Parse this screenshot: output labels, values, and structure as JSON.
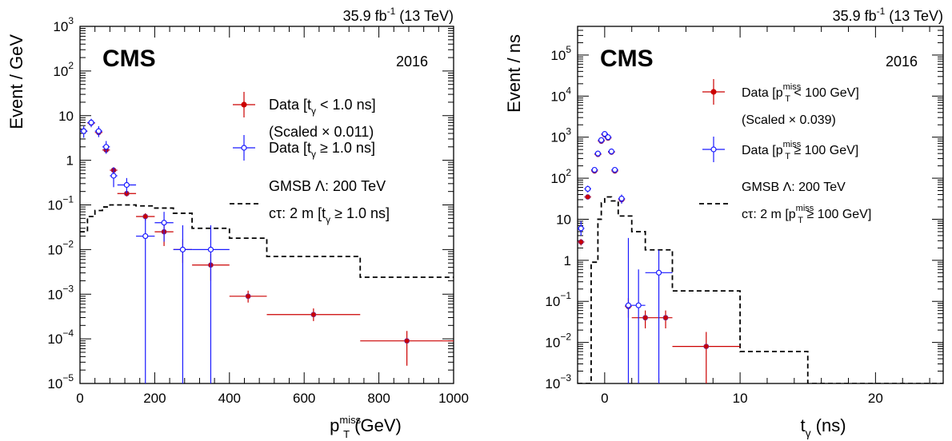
{
  "colors": {
    "data_low": "#cc0000",
    "data_high": "#1a1aff",
    "signal": "#000000"
  },
  "chart_data": [
    {
      "id": "left",
      "type": "scatter",
      "experiment": "CMS",
      "year": "2016",
      "lumi_label": "35.9 fb",
      "lumi_sup": "-1",
      "energy_label": " (13 TeV)",
      "xlabel_main": "p",
      "xlabel_sub": "T",
      "xlabel_sup": "miss",
      "xlabel_unit": " (GeV)",
      "ylabel": "Event / GeV",
      "x_scale": "linear",
      "y_scale": "log",
      "xlim": [
        0,
        1000
      ],
      "ylim": [
        1e-05,
        1000
      ],
      "x_ticks": [
        0,
        200,
        400,
        600,
        800,
        1000
      ],
      "y_tick_labels": [
        {
          "exp": -5,
          "text": "10",
          "sup": "−5"
        },
        {
          "exp": -4,
          "text": "10",
          "sup": "−4"
        },
        {
          "exp": -3,
          "text": "10",
          "sup": "−3"
        },
        {
          "exp": -2,
          "text": "10",
          "sup": "−2"
        },
        {
          "exp": -1,
          "text": "10",
          "sup": "−1"
        },
        {
          "exp": 0,
          "text": "1",
          "sup": ""
        },
        {
          "exp": 1,
          "text": "10",
          "sup": ""
        },
        {
          "exp": 2,
          "text": "10",
          "sup": "2"
        },
        {
          "exp": 3,
          "text": "10",
          "sup": "3"
        }
      ],
      "legend": [
        {
          "line1_pre": "Data [t",
          "line1_sub": "γ",
          "line1_sup": "",
          "line1_post": " < 1.0 ns]",
          "line2": "(Scaled × 0.011)",
          "color": "#cc0000",
          "marker": "filled"
        },
        {
          "line1_pre": "Data [t",
          "line1_sub": "γ",
          "line1_sup": "",
          "line1_post": " ≥ 1.0 ns]",
          "line2": "",
          "color": "#1a1aff",
          "marker": "open"
        },
        {
          "line1_pre": "GMSB Λ: 200 TeV",
          "line1_sub": "",
          "line1_sup": "",
          "line1_post": "",
          "line2_pre": "cτ: 2 m [t",
          "line2_sub": "γ",
          "line2_sup": "",
          "line2_post": " ≥ 1.0 ns]",
          "color": "#000000",
          "marker": "dashed"
        }
      ],
      "series": [
        {
          "name": "Data [tγ < 1.0 ns] (Scaled × 0.011)",
          "style": "filled",
          "color": "#cc0000",
          "points": [
            {
              "x": 10,
              "xlo": 0,
              "xhi": 20,
              "y": 4.5,
              "ylo": 4.1,
              "yhi": 4.9
            },
            {
              "x": 30,
              "xlo": 20,
              "xhi": 40,
              "y": 6.8,
              "ylo": 6.3,
              "yhi": 7.3
            },
            {
              "x": 50,
              "xlo": 40,
              "xhi": 60,
              "y": 4.2,
              "ylo": 3.8,
              "yhi": 4.6
            },
            {
              "x": 70,
              "xlo": 60,
              "xhi": 80,
              "y": 1.7,
              "ylo": 1.5,
              "yhi": 1.9
            },
            {
              "x": 90,
              "xlo": 80,
              "xhi": 100,
              "y": 0.6,
              "ylo": 0.52,
              "yhi": 0.68
            },
            {
              "x": 125,
              "xlo": 100,
              "xhi": 150,
              "y": 0.18,
              "ylo": 0.155,
              "yhi": 0.205
            },
            {
              "x": 175,
              "xlo": 150,
              "xhi": 200,
              "y": 0.055,
              "ylo": 0.045,
              "yhi": 0.065
            },
            {
              "x": 225,
              "xlo": 200,
              "xhi": 250,
              "y": 0.025,
              "ylo": 0.012,
              "yhi": 0.04
            },
            {
              "x": 275,
              "xlo": 250,
              "xhi": 300,
              "y": 0.01,
              "ylo": 0.005,
              "yhi": 0.017
            },
            {
              "x": 350,
              "xlo": 300,
              "xhi": 400,
              "y": 0.0045,
              "ylo": 0.002,
              "yhi": 0.008
            },
            {
              "x": 450,
              "xlo": 400,
              "xhi": 500,
              "y": 0.0009,
              "ylo": 0.00065,
              "yhi": 0.0012
            },
            {
              "x": 625,
              "xlo": 500,
              "xhi": 750,
              "y": 0.00035,
              "ylo": 0.00025,
              "yhi": 0.00048
            },
            {
              "x": 875,
              "xlo": 750,
              "xhi": 1000,
              "y": 9e-05,
              "ylo": 2.5e-05,
              "yhi": 0.00015
            }
          ]
        },
        {
          "name": "Data [tγ ≥ 1.0 ns]",
          "style": "open",
          "color": "#1a1aff",
          "points": [
            {
              "x": 10,
              "xlo": 0,
              "xhi": 20,
              "y": 4.5,
              "ylo": 3.2,
              "yhi": 5.8
            },
            {
              "x": 30,
              "xlo": 20,
              "xhi": 40,
              "y": 7.0,
              "ylo": 5.5,
              "yhi": 8.5
            },
            {
              "x": 50,
              "xlo": 40,
              "xhi": 60,
              "y": 4.5,
              "ylo": 3.3,
              "yhi": 5.8
            },
            {
              "x": 70,
              "xlo": 60,
              "xhi": 80,
              "y": 2.0,
              "ylo": 1.4,
              "yhi": 2.7
            },
            {
              "x": 90,
              "xlo": 80,
              "xhi": 100,
              "y": 0.45,
              "ylo": 0.25,
              "yhi": 0.7
            },
            {
              "x": 125,
              "xlo": 100,
              "xhi": 150,
              "y": 0.28,
              "ylo": 0.18,
              "yhi": 0.4
            },
            {
              "x": 175,
              "xlo": 150,
              "xhi": 200,
              "y": 0.02,
              "ylo": 1e-05,
              "yhi": 0.05
            },
            {
              "x": 225,
              "xlo": 200,
              "xhi": 250,
              "y": 0.04,
              "ylo": 0.015,
              "yhi": 0.07
            },
            {
              "x": 275,
              "xlo": 250,
              "xhi": 300,
              "y": 0.01,
              "ylo": 1e-05,
              "yhi": 0.035
            },
            {
              "x": 350,
              "xlo": 300,
              "xhi": 400,
              "y": 0.01,
              "ylo": 1e-05,
              "yhi": 0.035
            }
          ]
        }
      ],
      "signal": {
        "name": "GMSB Λ: 200 TeV cτ: 2 m [tγ ≥ 1.0 ns]",
        "style": "dashed",
        "edges": [
          0,
          20,
          40,
          60,
          80,
          100,
          150,
          200,
          250,
          300,
          400,
          500,
          750,
          1000
        ],
        "values": [
          0.025,
          0.055,
          0.075,
          0.09,
          0.1,
          0.1,
          0.095,
          0.085,
          0.065,
          0.03,
          0.018,
          0.007,
          0.0024
        ]
      }
    },
    {
      "id": "right",
      "type": "scatter",
      "experiment": "CMS",
      "year": "2016",
      "lumi_label": "35.9 fb",
      "lumi_sup": "-1",
      "energy_label": " (13 TeV)",
      "xlabel_main": "t",
      "xlabel_sub": "γ",
      "xlabel_sup": "",
      "xlabel_unit": " (ns)",
      "ylabel": "Event / ns",
      "x_scale": "linear",
      "y_scale": "log",
      "xlim": [
        -2,
        25
      ],
      "ylim": [
        0.001,
        500000
      ],
      "x_ticks": [
        0,
        10,
        20
      ],
      "y_tick_labels": [
        {
          "exp": -3,
          "text": "10",
          "sup": "−3"
        },
        {
          "exp": -2,
          "text": "10",
          "sup": "−2"
        },
        {
          "exp": -1,
          "text": "10",
          "sup": "−1"
        },
        {
          "exp": 0,
          "text": "1",
          "sup": ""
        },
        {
          "exp": 1,
          "text": "10",
          "sup": ""
        },
        {
          "exp": 2,
          "text": "10",
          "sup": "2"
        },
        {
          "exp": 3,
          "text": "10",
          "sup": "3"
        },
        {
          "exp": 4,
          "text": "10",
          "sup": "4"
        },
        {
          "exp": 5,
          "text": "10",
          "sup": "5"
        }
      ],
      "legend": [
        {
          "line1_pre": "Data [p",
          "line1_sub": "T",
          "line1_sup": "miss",
          "line1_post": " < 100 GeV]",
          "line2": "(Scaled × 0.039)",
          "color": "#cc0000",
          "marker": "filled"
        },
        {
          "line1_pre": "Data [p",
          "line1_sub": "T",
          "line1_sup": "miss",
          "line1_post": " ≥ 100 GeV]",
          "line2": "",
          "color": "#1a1aff",
          "marker": "open"
        },
        {
          "line1_pre": "GMSB Λ: 200 TeV",
          "line1_sub": "",
          "line1_sup": "",
          "line1_post": "",
          "line2_pre": "cτ: 2 m [p",
          "line2_sub": "T",
          "line2_sup": "miss",
          "line2_post": " ≥ 100 GeV]",
          "color": "#000000",
          "marker": "dashed"
        }
      ],
      "series": [
        {
          "name": "Data [pTmiss < 100 GeV] (Scaled × 0.039)",
          "style": "filled",
          "color": "#cc0000",
          "points": [
            {
              "x": -1.75,
              "xlo": -2,
              "xhi": -1.5,
              "y": 2.8,
              "ylo": 2.3,
              "yhi": 3.3
            },
            {
              "x": -1.25,
              "xlo": -1.5,
              "xhi": -1,
              "y": 35,
              "ylo": 31,
              "yhi": 39
            },
            {
              "x": -0.75,
              "xlo": -1,
              "xhi": -0.5,
              "y": 150,
              "ylo": 140,
              "yhi": 160
            },
            {
              "x": -0.5,
              "xlo": -0.75,
              "xhi": -0.25,
              "y": 380,
              "ylo": 360,
              "yhi": 400
            },
            {
              "x": -0.25,
              "xlo": -0.5,
              "xhi": 0,
              "y": 800,
              "ylo": 770,
              "yhi": 830
            },
            {
              "x": 0,
              "xlo": -0.25,
              "xhi": 0.25,
              "y": 1150,
              "ylo": 1110,
              "yhi": 1190
            },
            {
              "x": 0.25,
              "xlo": 0,
              "xhi": 0.5,
              "y": 950,
              "ylo": 915,
              "yhi": 985
            },
            {
              "x": 0.5,
              "xlo": 0.25,
              "xhi": 0.75,
              "y": 430,
              "ylo": 410,
              "yhi": 450
            },
            {
              "x": 0.75,
              "xlo": 0.5,
              "xhi": 1,
              "y": 150,
              "ylo": 140,
              "yhi": 160
            },
            {
              "x": 1.25,
              "xlo": 1,
              "xhi": 1.5,
              "y": 30,
              "ylo": 26,
              "yhi": 34
            },
            {
              "x": 1.75,
              "xlo": 1.5,
              "xhi": 2,
              "y": 0.075,
              "ylo": 0.04,
              "yhi": 0.12
            },
            {
              "x": 3.0,
              "xlo": 2,
              "xhi": 4,
              "y": 0.04,
              "ylo": 0.022,
              "yhi": 0.06
            },
            {
              "x": 4.5,
              "xlo": 4,
              "xhi": 5,
              "y": 0.04,
              "ylo": 0.022,
              "yhi": 0.06
            },
            {
              "x": 7.5,
              "xlo": 5,
              "xhi": 10,
              "y": 0.008,
              "ylo": 0.001,
              "yhi": 0.018
            }
          ]
        },
        {
          "name": "Data [pTmiss ≥ 100 GeV]",
          "style": "open",
          "color": "#1a1aff",
          "points": [
            {
              "x": -1.75,
              "xlo": -2,
              "xhi": -1.5,
              "y": 6,
              "ylo": 4,
              "yhi": 9
            },
            {
              "x": -1.25,
              "xlo": -1.5,
              "xhi": -1,
              "y": 55,
              "ylo": 45,
              "yhi": 66
            },
            {
              "x": -0.75,
              "xlo": -1,
              "xhi": -0.5,
              "y": 160,
              "ylo": 140,
              "yhi": 180
            },
            {
              "x": -0.5,
              "xlo": -0.75,
              "xhi": -0.25,
              "y": 400,
              "ylo": 370,
              "yhi": 430
            },
            {
              "x": -0.25,
              "xlo": -0.5,
              "xhi": 0,
              "y": 850,
              "ylo": 800,
              "yhi": 900
            },
            {
              "x": 0,
              "xlo": -0.25,
              "xhi": 0.25,
              "y": 1200,
              "ylo": 1140,
              "yhi": 1260
            },
            {
              "x": 0.25,
              "xlo": 0,
              "xhi": 0.5,
              "y": 1000,
              "ylo": 945,
              "yhi": 1055
            },
            {
              "x": 0.5,
              "xlo": 0.25,
              "xhi": 0.75,
              "y": 450,
              "ylo": 415,
              "yhi": 485
            },
            {
              "x": 0.75,
              "xlo": 0.5,
              "xhi": 1,
              "y": 160,
              "ylo": 140,
              "yhi": 180
            },
            {
              "x": 1.25,
              "xlo": 1,
              "xhi": 1.5,
              "y": 32,
              "ylo": 24,
              "yhi": 40
            },
            {
              "x": 1.75,
              "xlo": 1.5,
              "xhi": 2,
              "y": 0.08,
              "ylo": 0.001,
              "yhi": 3.5
            },
            {
              "x": 2.5,
              "xlo": 2,
              "xhi": 3,
              "y": 0.08,
              "ylo": 0.001,
              "yhi": 0.6
            },
            {
              "x": 4.0,
              "xlo": 3,
              "xhi": 5,
              "y": 0.5,
              "ylo": 0.001,
              "yhi": 1.8
            }
          ]
        }
      ],
      "signal": {
        "name": "GMSB Λ: 200 TeV cτ: 2 m [pTmiss ≥ 100 GeV]",
        "style": "dashed",
        "edges": [
          -2,
          -1,
          -0.5,
          -0.25,
          0,
          0.5,
          1,
          2,
          3,
          5,
          10,
          15,
          25
        ],
        "values": [
          0.001,
          0.9,
          10,
          25,
          35,
          28,
          12,
          5,
          1.8,
          0.18,
          0.006,
          0.001
        ]
      }
    }
  ]
}
